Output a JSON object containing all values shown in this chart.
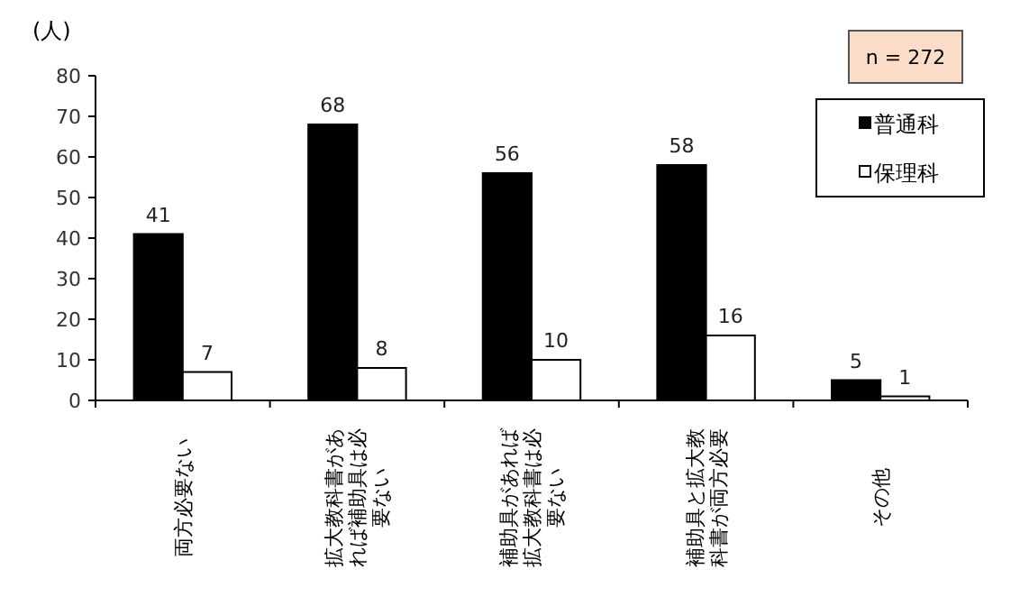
{
  "chart_data": {
    "type": "bar",
    "ylabel": "(人)",
    "categories": [
      "両方必要ない",
      "拡大教科書があれば補助具は必要ない",
      "補助具があれば拡大教科書は必要ない",
      "補助具と拡大教科書が両方必要",
      "その他"
    ],
    "series": [
      {
        "name": "普通科",
        "color": "#000000",
        "values": [
          41,
          68,
          56,
          58,
          5
        ]
      },
      {
        "name": "保理科",
        "color": "#ffffff",
        "values": [
          7,
          8,
          10,
          16,
          1
        ]
      }
    ],
    "ylim": [
      0,
      80
    ],
    "yticks": [
      0,
      10,
      20,
      30,
      40,
      50,
      60,
      70,
      80
    ],
    "data_labels": true,
    "legend": "top right",
    "grid": false,
    "annotations": [
      "n = 272"
    ]
  }
}
